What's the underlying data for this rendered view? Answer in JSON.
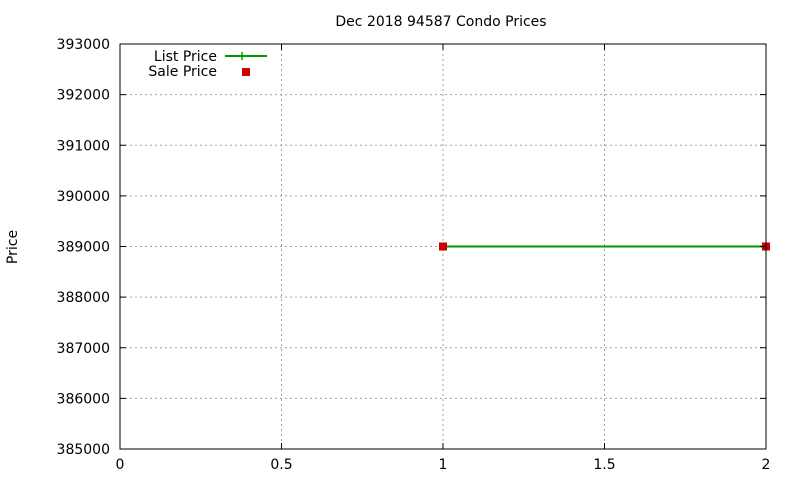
{
  "chart_data": {
    "type": "line",
    "title": "Dec 2018 94587 Condo Prices",
    "xlabel": "",
    "ylabel": "Price",
    "xlim": [
      0,
      2
    ],
    "ylim": [
      385000,
      393000
    ],
    "x_ticks": [
      0,
      0.5,
      1,
      1.5,
      2
    ],
    "x_tick_labels": [
      "0",
      "0.5",
      "1",
      "1.5",
      "2"
    ],
    "y_ticks": [
      385000,
      386000,
      387000,
      388000,
      389000,
      390000,
      391000,
      392000,
      393000
    ],
    "y_tick_labels": [
      "385000",
      "386000",
      "387000",
      "388000",
      "389000",
      "390000",
      "391000",
      "392000",
      "393000"
    ],
    "grid": true,
    "legend_position": "top-left",
    "series": [
      {
        "name": "List Price",
        "style": "line",
        "color": "#009900",
        "x": [
          1,
          2
        ],
        "y": [
          389000,
          389000
        ]
      },
      {
        "name": "Sale Price",
        "style": "points",
        "color": "#cc0000",
        "x": [
          1,
          2
        ],
        "y": [
          389000,
          389000
        ]
      }
    ]
  }
}
